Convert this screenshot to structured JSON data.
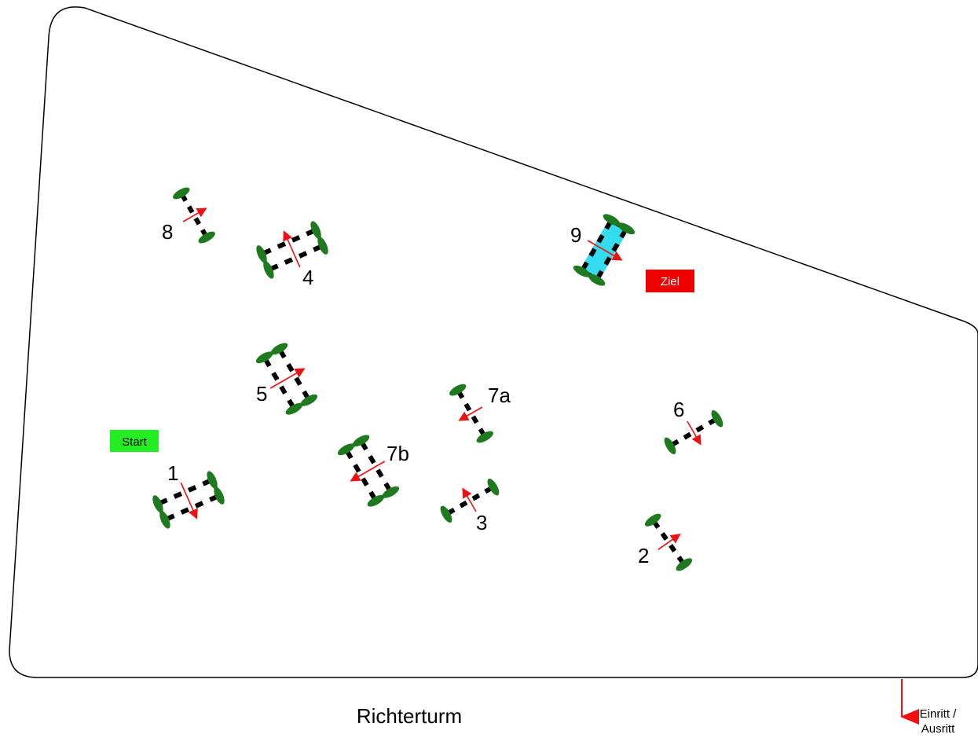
{
  "arena": {
    "judges_tower_label": "Richterturm",
    "entrance_label_line1": "Einritt /",
    "entrance_label_line2": "Ausritt"
  },
  "markers": {
    "start": {
      "label": "Start",
      "color": "#22ee22"
    },
    "finish": {
      "label": "Ziel",
      "color": "#ee0000"
    }
  },
  "colors": {
    "fence_outline": "#000000",
    "pole_dark": "#000000",
    "pole_light": "#ffffff",
    "pole_water": "#33ddee",
    "standard": "#1f7a1f",
    "direction_arrow": "#ee1111"
  },
  "obstacles": [
    {
      "id": "1",
      "label": "1",
      "kind": "oxer"
    },
    {
      "id": "2",
      "label": "2",
      "kind": "vertical"
    },
    {
      "id": "3",
      "label": "3",
      "kind": "vertical"
    },
    {
      "id": "4",
      "label": "4",
      "kind": "oxer"
    },
    {
      "id": "5",
      "label": "5",
      "kind": "oxer"
    },
    {
      "id": "6",
      "label": "6",
      "kind": "vertical"
    },
    {
      "id": "7a",
      "label": "7a",
      "kind": "vertical"
    },
    {
      "id": "7b",
      "label": "7b",
      "kind": "oxer"
    },
    {
      "id": "8",
      "label": "8",
      "kind": "vertical"
    },
    {
      "id": "9",
      "label": "9",
      "kind": "water-oxer"
    }
  ]
}
